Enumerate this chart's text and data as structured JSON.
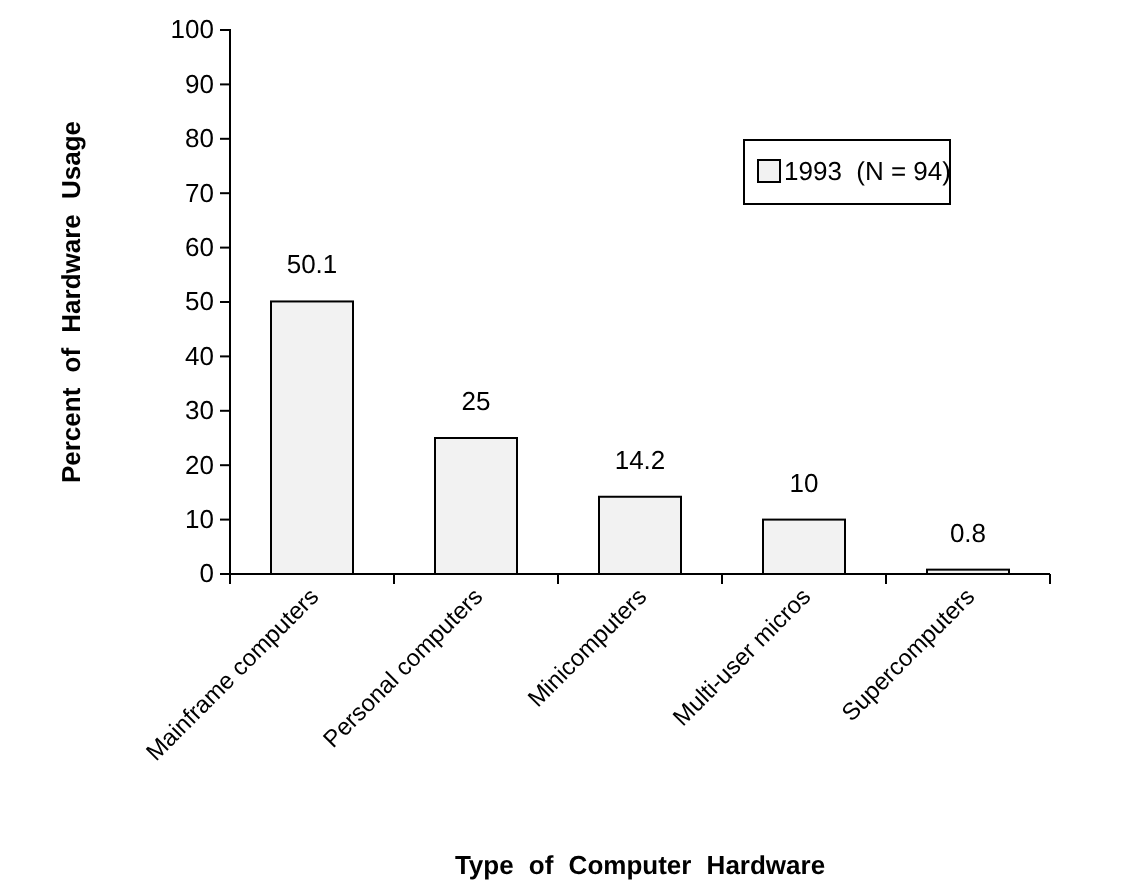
{
  "chart_data": {
    "type": "bar",
    "xlabel": "Type of Computer Hardware",
    "ylabel": "Percent of Hardware Usage",
    "categories": [
      "Mainframe computers",
      "Personal computers",
      "Minicomputers",
      "Multi-user micros",
      "Supercomputers"
    ],
    "series": [
      {
        "name": "1993  (N = 94)",
        "color": "#f2f2f2",
        "values": [
          50.1,
          25,
          14.2,
          10,
          0.8
        ]
      }
    ],
    "ylim": [
      0,
      100
    ],
    "yticks": [
      0,
      10,
      20,
      30,
      40,
      50,
      60,
      70,
      80,
      90,
      100
    ],
    "grid": false,
    "legend": "top right",
    "data_labels": true
  }
}
